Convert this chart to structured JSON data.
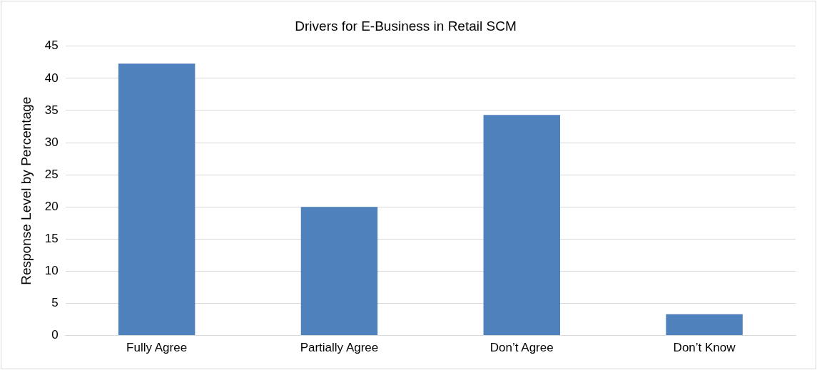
{
  "chart_data": {
    "type": "bar",
    "title": "Drivers for E-Business in Retail SCM",
    "ylabel": "Response Level by Percentage",
    "categories": [
      "Fully Agree",
      "Partially Agree",
      "Don’t Agree",
      "Don’t Know"
    ],
    "values": [
      42.3,
      20,
      34.3,
      3.3
    ],
    "color": "#4f81bd",
    "ylim": [
      0,
      45
    ],
    "yticks": [
      0,
      5,
      10,
      15,
      20,
      25,
      30,
      35,
      40,
      45
    ],
    "grid": "y"
  }
}
